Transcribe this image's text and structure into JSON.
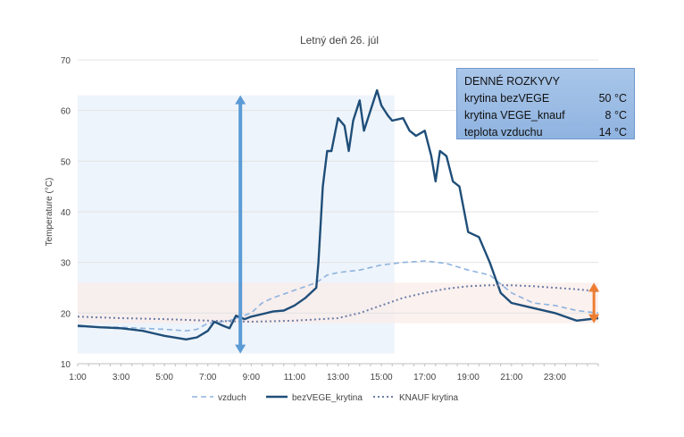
{
  "chart_data": {
    "type": "line",
    "title": "Letný deň 26. júl",
    "xlabel": "",
    "ylabel": "Temperature (°C)",
    "ylim": [
      10,
      70
    ],
    "yticks": [
      "10",
      "20",
      "30",
      "40",
      "50",
      "60",
      "70"
    ],
    "xticks": [
      "1:00",
      "3:00",
      "5:00",
      "7:00",
      "9:00",
      "11:00",
      "13:00",
      "15:00",
      "17:00",
      "19:00",
      "21:00",
      "23:00"
    ],
    "xlim_hours": [
      1,
      25
    ],
    "grid": true,
    "legend_position": "bottom",
    "series": [
      {
        "name": "vzduch",
        "style": "dashed",
        "color": "#8fb3de",
        "x": [
          1,
          3,
          5,
          6,
          6.5,
          7,
          8,
          9,
          9.5,
          10,
          11,
          12,
          12.5,
          13,
          14,
          15,
          16,
          17,
          18,
          19,
          20,
          21,
          22,
          23,
          24,
          25
        ],
        "y": [
          17.3,
          17.2,
          16.8,
          16.5,
          16.8,
          18,
          18.5,
          20,
          22,
          23,
          24.5,
          26,
          27.5,
          28,
          28.5,
          29.5,
          30,
          30.3,
          29.8,
          28.5,
          27.5,
          24,
          22,
          21.5,
          20.5,
          20
        ]
      },
      {
        "name": "bezVEGE_krytina",
        "style": "solid",
        "color": "#1f4e79",
        "x": [
          1,
          2,
          3,
          4,
          4.5,
          5,
          6,
          6.5,
          7,
          7.3,
          7.7,
          8,
          8.3,
          8.7,
          9,
          9.5,
          10,
          10.5,
          11,
          11.5,
          12,
          12.1,
          12.3,
          12.5,
          12.7,
          13,
          13.3,
          13.5,
          13.7,
          14,
          14.2,
          14.5,
          14.8,
          15,
          15.3,
          15.5,
          16,
          16.3,
          16.6,
          17,
          17.3,
          17.5,
          17.7,
          18,
          18.3,
          18.6,
          19,
          19.5,
          20,
          20.5,
          21,
          22,
          23,
          24,
          25
        ],
        "y": [
          17.5,
          17.2,
          17,
          16.5,
          16,
          15.5,
          14.8,
          15.2,
          16.5,
          18.3,
          17.5,
          17,
          19.5,
          18.8,
          19.3,
          19.8,
          20.3,
          20.5,
          21.5,
          23,
          25,
          30,
          45,
          52,
          52,
          58.5,
          57,
          52,
          58,
          62,
          56,
          60,
          64,
          61,
          59,
          58,
          58.5,
          56,
          55,
          56,
          51,
          46,
          52,
          51,
          46,
          45,
          36,
          35,
          30,
          24,
          22,
          21,
          20,
          18.5,
          19
        ]
      },
      {
        "name": "KNAUF krytina",
        "style": "dotted",
        "color": "#6e7fa8",
        "x": [
          1,
          3,
          5,
          7,
          9,
          11,
          13,
          14,
          15,
          16,
          17,
          18,
          19,
          20,
          21,
          22,
          23,
          24,
          25
        ],
        "y": [
          19.3,
          19,
          18.8,
          18.5,
          18.3,
          18.5,
          19,
          20,
          21.5,
          23,
          24,
          24.8,
          25.3,
          25.5,
          25.5,
          25.3,
          25,
          24.7,
          24.3
        ]
      }
    ],
    "annotations": {
      "range_arrow_bezVEGE": {
        "x_hour": 8.5,
        "y": [
          12,
          63
        ],
        "color": "#5b9bd5"
      },
      "range_arrow_knauf": {
        "x_hour": 24.8,
        "y": [
          18,
          26
        ],
        "color": "#ed7d31"
      },
      "shaded_region_blue": {
        "x_hours": [
          1,
          15.6
        ],
        "y": [
          12,
          63
        ]
      },
      "shaded_band_pink": {
        "y": [
          18,
          26
        ]
      }
    }
  },
  "info_box": {
    "title": "DENNÉ ROZKYVY",
    "rows": [
      {
        "label": "krytina bezVEGE",
        "value": "50 °C"
      },
      {
        "label": "krytina VEGE_knauf",
        "value": "8 °C"
      },
      {
        "label": "teplota vzduchu",
        "value": "14 °C"
      }
    ]
  }
}
